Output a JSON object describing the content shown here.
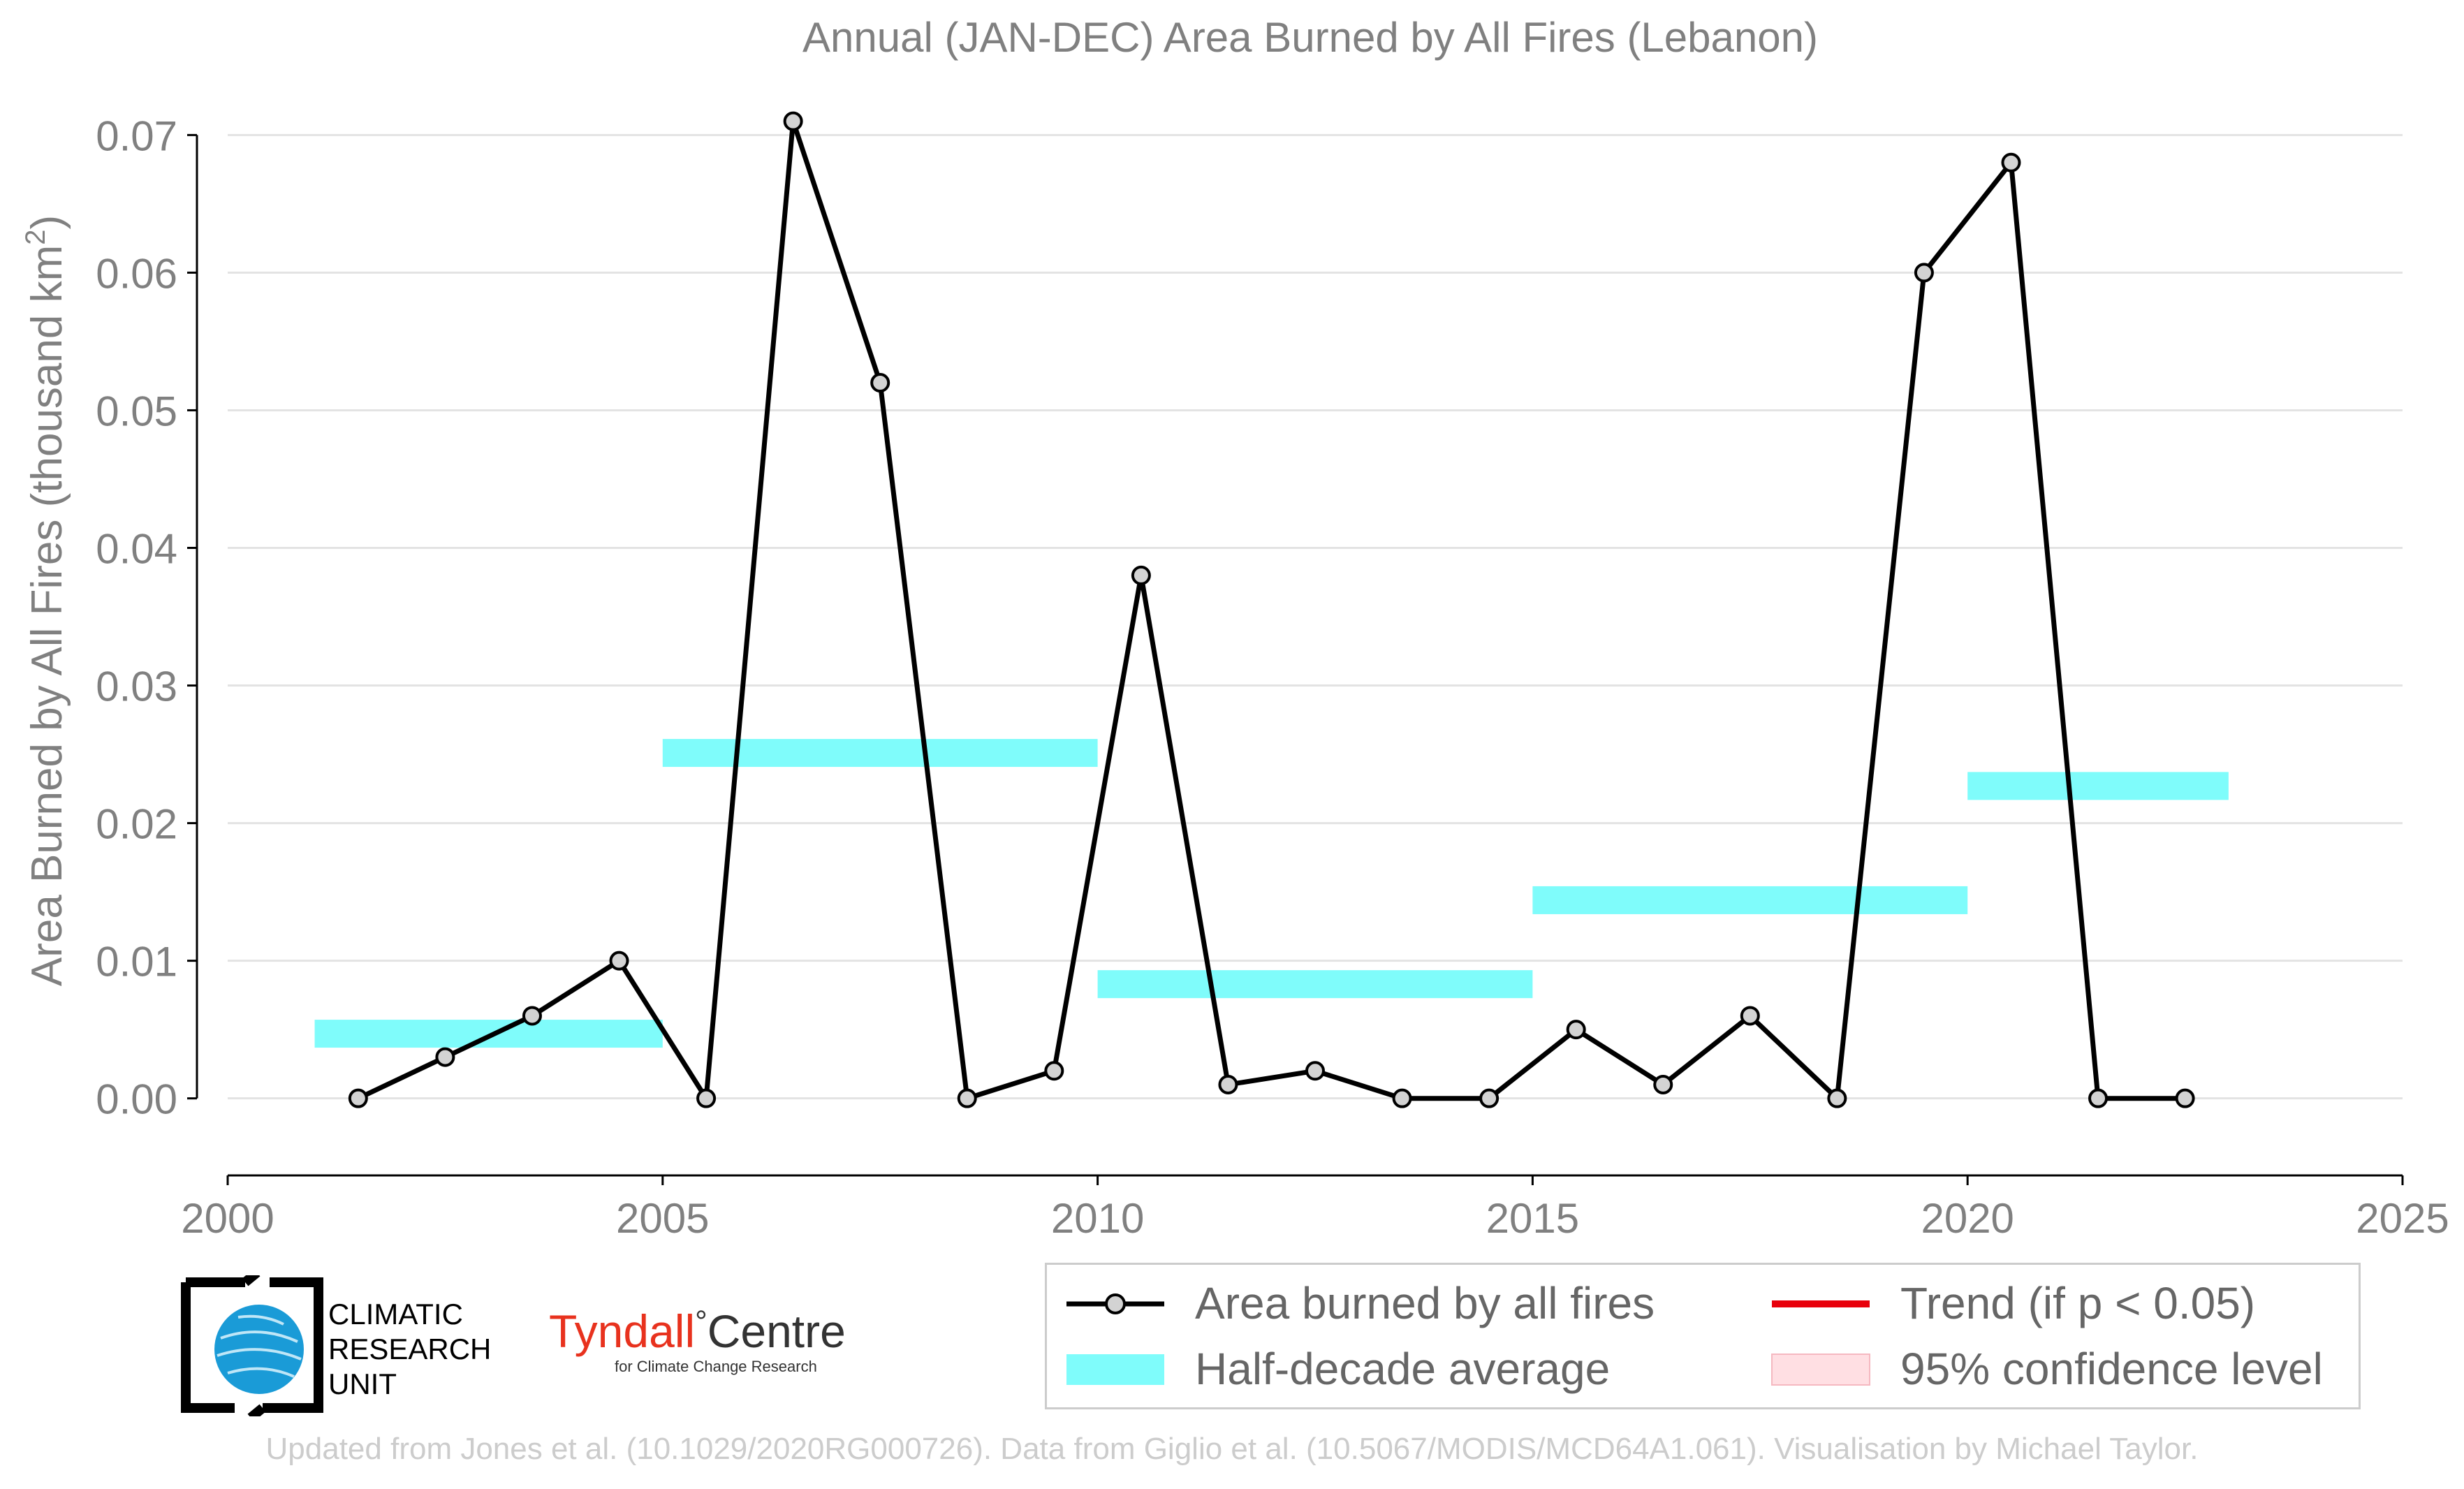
{
  "chart_data": {
    "type": "line",
    "title": "Annual (JAN-DEC) Area Burned by All Fires (Lebanon)",
    "ylabel_prefix": "Area Burned by All Fires (thousand km",
    "ylabel_sup": "2",
    "ylabel_suffix": ")",
    "xlim": [
      2000,
      2025
    ],
    "ylim": [
      -0.0057,
      0.0722
    ],
    "x_ticks": [
      2000,
      2005,
      2010,
      2015,
      2020,
      2025
    ],
    "x_tick_labels": [
      "2000",
      "2005",
      "2010",
      "2015",
      "2020",
      "2025"
    ],
    "y_ticks": [
      0.0,
      0.01,
      0.02,
      0.03,
      0.04,
      0.05,
      0.06,
      0.07
    ],
    "y_tick_labels": [
      "0.00",
      "0.01",
      "0.02",
      "0.03",
      "0.04",
      "0.05",
      "0.06",
      "0.07"
    ],
    "grid": "horizontal",
    "series": [
      {
        "name": "Area burned by all fires",
        "color": "#000000",
        "marker_fill": "#d3d3d3",
        "x": [
          2001.5,
          2002.5,
          2003.5,
          2004.5,
          2005.5,
          2006.5,
          2007.5,
          2008.5,
          2009.5,
          2010.5,
          2011.5,
          2012.5,
          2013.5,
          2014.5,
          2015.5,
          2016.5,
          2017.5,
          2018.5,
          2019.5,
          2020.5,
          2021.5,
          2022.5
        ],
        "values": [
          0.0,
          0.003,
          0.006,
          0.01,
          0.0,
          0.071,
          0.052,
          0.0,
          0.002,
          0.038,
          0.001,
          0.002,
          0.0,
          0.0,
          0.005,
          0.001,
          0.006,
          0.0,
          0.06,
          0.068,
          0.0,
          0.0
        ]
      }
    ],
    "half_decade_average": {
      "name": "Half-decade average",
      "color": "#7ffcfb",
      "segments": [
        {
          "x0": 2001,
          "x1": 2005,
          "value": 0.0047
        },
        {
          "x0": 2005,
          "x1": 2010,
          "value": 0.0251
        },
        {
          "x0": 2010,
          "x1": 2015,
          "value": 0.0083
        },
        {
          "x0": 2015,
          "x1": 2020,
          "value": 0.0144
        },
        {
          "x0": 2020,
          "x1": 2023,
          "value": 0.0227
        }
      ]
    },
    "legend": {
      "placement": "bottom-right",
      "entries": [
        {
          "label": "Area burned by all fires",
          "kind": "line-marker",
          "color": "#000000"
        },
        {
          "label": "Trend (if p < 0.05)",
          "kind": "line",
          "color": "#e8000b"
        },
        {
          "label": "Half-decade average",
          "kind": "band",
          "color": "#7ffcfb"
        },
        {
          "label": "95% confidence level",
          "kind": "band",
          "color": "#ffdfe3"
        }
      ]
    }
  },
  "logos": {
    "cru_line1": "CLIMATIC",
    "cru_line2": "RESEARCH",
    "cru_line3": "UNIT",
    "tyndall_main": "Tyndall",
    "tyndall_degree": "°",
    "tyndall_centre": "Centre",
    "tyndall_sub": "for Climate Change Research"
  },
  "footer": "Updated from Jones et al. (10.1029/2020RG000726). Data from Giglio et al. (10.5067/MODIS/MCD64A1.061). Visualisation by Michael Taylor."
}
